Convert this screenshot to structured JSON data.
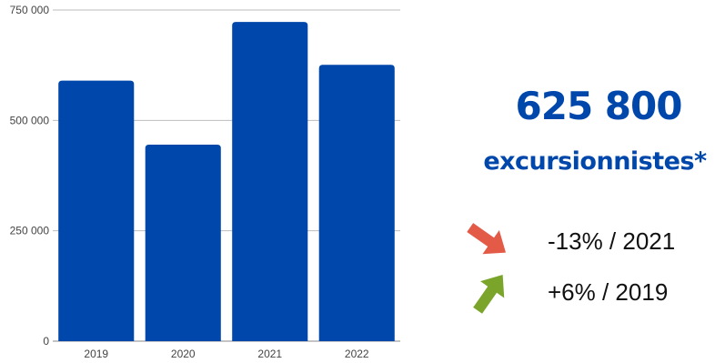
{
  "chart_data": {
    "type": "bar",
    "categories": [
      "2019",
      "2020",
      "2021",
      "2022"
    ],
    "values": [
      590000,
      445000,
      723000,
      625800
    ],
    "ylim": [
      0,
      750000
    ],
    "yticks": [
      0,
      250000,
      500000,
      750000
    ],
    "ytick_labels": [
      "0",
      "250 000",
      "500 000",
      "750 000"
    ],
    "grid": true,
    "bar_color": "#0047ab",
    "xlabel": "",
    "ylabel": "",
    "title": ""
  },
  "summary": {
    "value": "625 800",
    "label": "excursionnistes*",
    "accent_color": "#0047ab"
  },
  "comparisons": [
    {
      "text": "-13% / 2021",
      "icon": "arrow-down-right-icon",
      "color": "#e35a47"
    },
    {
      "text": "+6% / 2019",
      "icon": "arrow-up-right-icon",
      "color": "#7aa52a"
    }
  ]
}
